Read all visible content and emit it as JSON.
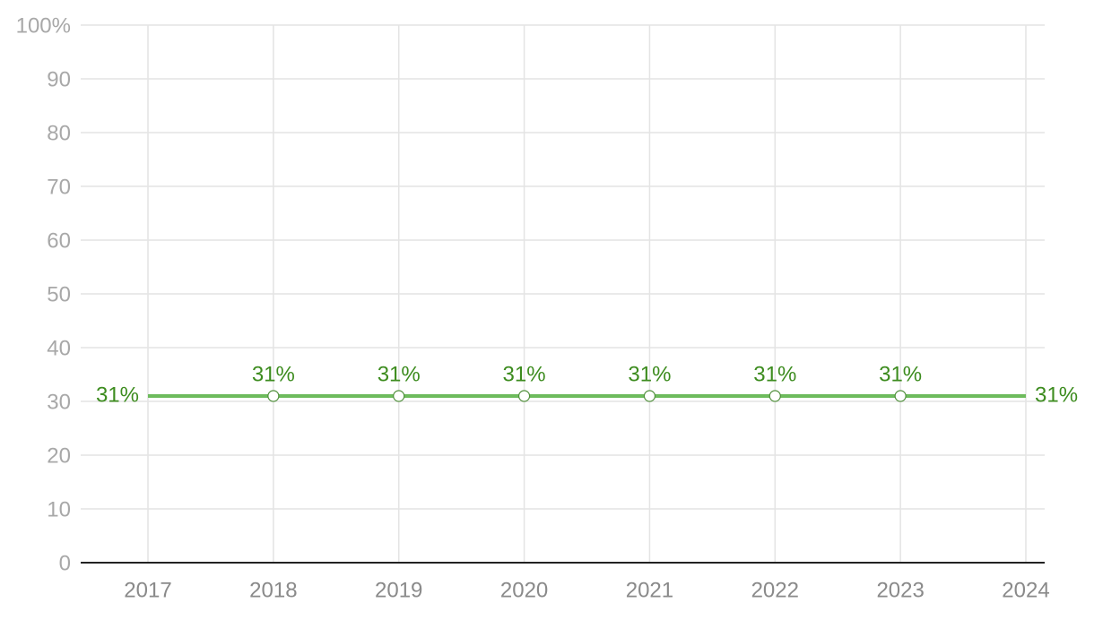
{
  "chart_data": {
    "type": "line",
    "categories": [
      "2017",
      "2018",
      "2019",
      "2020",
      "2021",
      "2022",
      "2023",
      "2024"
    ],
    "series": [
      {
        "color": "#6dbb5c",
        "values": [
          31,
          31,
          31,
          31,
          31,
          31,
          31,
          31
        ],
        "value_labels": [
          "31%",
          "31%",
          "31%",
          "31%",
          "31%",
          "31%",
          "31%",
          "31%"
        ]
      }
    ],
    "ylim": [
      0,
      100
    ],
    "yticks": [
      0,
      10,
      20,
      30,
      40,
      50,
      60,
      70,
      80,
      90,
      {
        "value": 100,
        "label": "100%"
      }
    ],
    "grid": true
  }
}
